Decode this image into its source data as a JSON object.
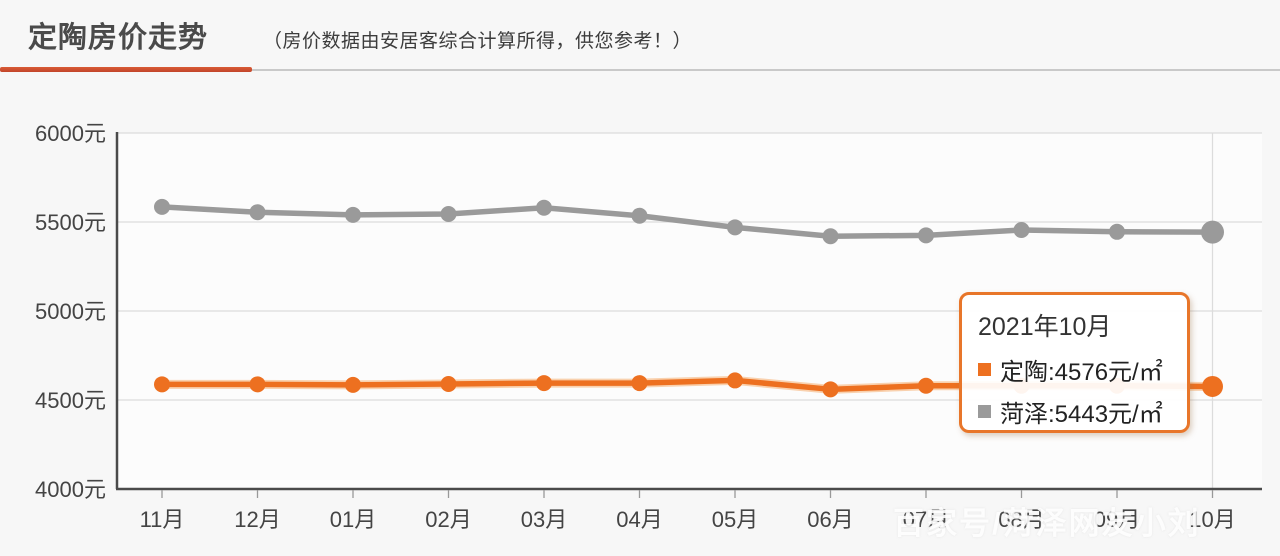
{
  "header": {
    "title": "定陶房价走势",
    "subtitle": "（房价数据由安居客综合计算所得，供您参考！）"
  },
  "watermark": "百家号/菏泽网友小刘",
  "colors": {
    "accent_orange": "#ed7020",
    "orange_halo": "#f6ad6e",
    "series_gray": "#9a9a9a",
    "underline_red": "#cc4c2d",
    "tooltip_border": "#e8762a",
    "grid_line": "#dcdcdc",
    "axis_line": "#4a4a4a",
    "axis_text": "#444444"
  },
  "tooltip": {
    "title": "2021年10月",
    "rows": [
      {
        "series": "定陶",
        "label": "定陶:4576元/㎡",
        "color": "#ed7020"
      },
      {
        "series": "菏泽",
        "label": "菏泽:5443元/㎡",
        "color": "#9a9a9a"
      }
    ]
  },
  "chart_data": {
    "type": "line",
    "title": "定陶房价走势",
    "categories": [
      "11月",
      "12月",
      "01月",
      "02月",
      "03月",
      "04月",
      "05月",
      "06月",
      "07月",
      "08月",
      "09月",
      "10月"
    ],
    "series": [
      {
        "name": "定陶",
        "color": "#ed7020",
        "values": [
          4588,
          4588,
          4585,
          4590,
          4595,
          4595,
          4610,
          4560,
          4580,
          4580,
          4580,
          4576
        ]
      },
      {
        "name": "菏泽",
        "color": "#9a9a9a",
        "values": [
          5585,
          5555,
          5540,
          5545,
          5580,
          5535,
          5470,
          5420,
          5425,
          5455,
          5445,
          5443
        ]
      }
    ],
    "ylabels": [
      "6000元",
      "5500元",
      "5000元",
      "4500元",
      "4000元"
    ],
    "yticks": [
      6000,
      5500,
      5000,
      4500,
      4000
    ],
    "ylim": [
      4000,
      6000
    ],
    "unit": "元/㎡",
    "grid": true,
    "highlight_index": 11,
    "legend_position": "tooltip"
  }
}
